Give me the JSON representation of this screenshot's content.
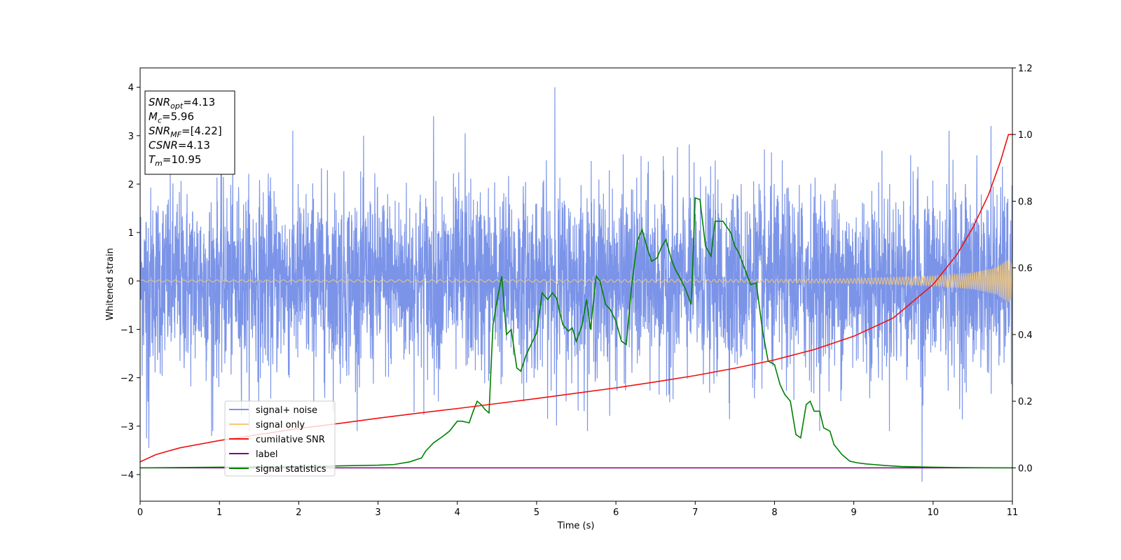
{
  "chart_data": {
    "type": "line",
    "xlabel": "Time (s)",
    "ylabel": "Whitened strain",
    "xlim": [
      0,
      11
    ],
    "ylim": [
      -4.55,
      4.4
    ],
    "y2lim": [
      -0.1,
      1.2
    ],
    "xticks": [
      0,
      1,
      2,
      3,
      4,
      5,
      6,
      7,
      8,
      9,
      10,
      11
    ],
    "yticks": [
      -4,
      -3,
      -2,
      -1,
      0,
      1,
      2,
      3,
      4
    ],
    "y2ticks": [
      "0.0",
      "0.2",
      "0.4",
      "0.6",
      "0.8",
      "1.0",
      "1.2"
    ],
    "grid": false,
    "legend_placement": "lower-left",
    "info_box": [
      {
        "name": "SNR",
        "sub": "opt",
        "value": "=4.13"
      },
      {
        "name": "M",
        "sub": "c",
        "value": "=5.96"
      },
      {
        "name": "SNR",
        "sub": "MF",
        "value": "=[4.22]"
      },
      {
        "name": "CSNR",
        "sub": "",
        "value": "=4.13"
      },
      {
        "name": "T",
        "sub": "m",
        "value": "=10.95"
      }
    ],
    "series": [
      {
        "name": "signal+ noise",
        "color": "#7b94e8",
        "axis": "left",
        "description": "noise-dominated whitened strain, roughly within [-3, 3] with spikes",
        "x_range": [
          0,
          11
        ],
        "spikes": [
          [
            0.08,
            -3.25
          ],
          [
            0.11,
            -3.45
          ],
          [
            0.9,
            -3.2
          ],
          [
            3.7,
            3.4
          ],
          [
            4.1,
            3.05
          ],
          [
            5.23,
            4.0
          ],
          [
            9.86,
            -4.15
          ],
          [
            10.2,
            3.1
          ],
          [
            10.73,
            3.2
          ]
        ]
      },
      {
        "name": "signal only",
        "color": "#f5c878",
        "axis": "left",
        "description": "chirp with amplitude growing toward merger",
        "envelope": {
          "x": [
            0,
            8,
            9,
            10,
            10.5,
            10.8,
            10.95,
            11
          ],
          "amp": [
            0.02,
            0.03,
            0.05,
            0.1,
            0.17,
            0.28,
            0.45,
            0.35
          ]
        }
      },
      {
        "name": "cumilative SNR",
        "color": "#ee1111",
        "axis": "right",
        "x": [
          0,
          0.2,
          0.5,
          1,
          1.5,
          2,
          2.5,
          3,
          3.5,
          4,
          4.5,
          5,
          5.5,
          6,
          6.5,
          7,
          7.5,
          8,
          8.5,
          9,
          9.5,
          10,
          10.3,
          10.5,
          10.7,
          10.85,
          10.95,
          11
        ],
        "values": [
          0.018,
          0.04,
          0.06,
          0.082,
          0.1,
          0.118,
          0.133,
          0.149,
          0.164,
          0.178,
          0.193,
          0.208,
          0.224,
          0.24,
          0.258,
          0.277,
          0.299,
          0.324,
          0.355,
          0.395,
          0.45,
          0.55,
          0.64,
          0.72,
          0.82,
          0.92,
          1.0,
          1.0
        ]
      },
      {
        "name": "label",
        "color": "#800080",
        "axis": "right",
        "x": [
          0,
          11
        ],
        "values": [
          0.0,
          0.0
        ]
      },
      {
        "name": "signal statistics",
        "color": "#008000",
        "axis": "right",
        "x": [
          0,
          1,
          2,
          2.5,
          3,
          3.2,
          3.4,
          3.55,
          3.6,
          3.7,
          3.82,
          3.9,
          4.0,
          4.06,
          4.15,
          4.2,
          4.25,
          4.3,
          4.35,
          4.4,
          4.45,
          4.5,
          4.56,
          4.62,
          4.68,
          4.75,
          4.8,
          4.87,
          5.0,
          5.07,
          5.14,
          5.2,
          5.25,
          5.33,
          5.4,
          5.45,
          5.5,
          5.57,
          5.63,
          5.68,
          5.75,
          5.8,
          5.87,
          5.93,
          6.0,
          6.07,
          6.13,
          6.2,
          6.27,
          6.33,
          6.4,
          6.45,
          6.52,
          6.57,
          6.63,
          6.7,
          6.75,
          6.82,
          6.88,
          6.95,
          7.0,
          7.06,
          7.13,
          7.2,
          7.25,
          7.35,
          7.45,
          7.5,
          7.55,
          7.62,
          7.7,
          7.77,
          7.85,
          7.92,
          8.0,
          8.07,
          8.13,
          8.2,
          8.27,
          8.33,
          8.4,
          8.45,
          8.5,
          8.57,
          8.62,
          8.7,
          8.75,
          8.85,
          8.95,
          9.05,
          9.15,
          9.25,
          9.4,
          9.6,
          9.8,
          10.0,
          10.3,
          10.6,
          11
        ],
        "values": [
          0.0,
          0.002,
          0.004,
          0.006,
          0.008,
          0.01,
          0.018,
          0.03,
          0.05,
          0.075,
          0.095,
          0.11,
          0.14,
          0.14,
          0.135,
          0.17,
          0.2,
          0.19,
          0.175,
          0.165,
          0.43,
          0.5,
          0.575,
          0.4,
          0.415,
          0.3,
          0.29,
          0.34,
          0.405,
          0.525,
          0.505,
          0.525,
          0.51,
          0.43,
          0.41,
          0.42,
          0.38,
          0.425,
          0.505,
          0.415,
          0.575,
          0.56,
          0.49,
          0.475,
          0.44,
          0.38,
          0.37,
          0.55,
          0.68,
          0.715,
          0.655,
          0.62,
          0.63,
          0.66,
          0.685,
          0.625,
          0.595,
          0.565,
          0.535,
          0.49,
          0.81,
          0.805,
          0.665,
          0.635,
          0.74,
          0.74,
          0.705,
          0.665,
          0.645,
          0.6,
          0.55,
          0.555,
          0.41,
          0.32,
          0.31,
          0.25,
          0.22,
          0.2,
          0.1,
          0.09,
          0.19,
          0.2,
          0.17,
          0.17,
          0.12,
          0.11,
          0.07,
          0.04,
          0.02,
          0.015,
          0.012,
          0.01,
          0.007,
          0.004,
          0.003,
          0.002,
          0.001,
          0.0005,
          0.0
        ]
      }
    ]
  }
}
